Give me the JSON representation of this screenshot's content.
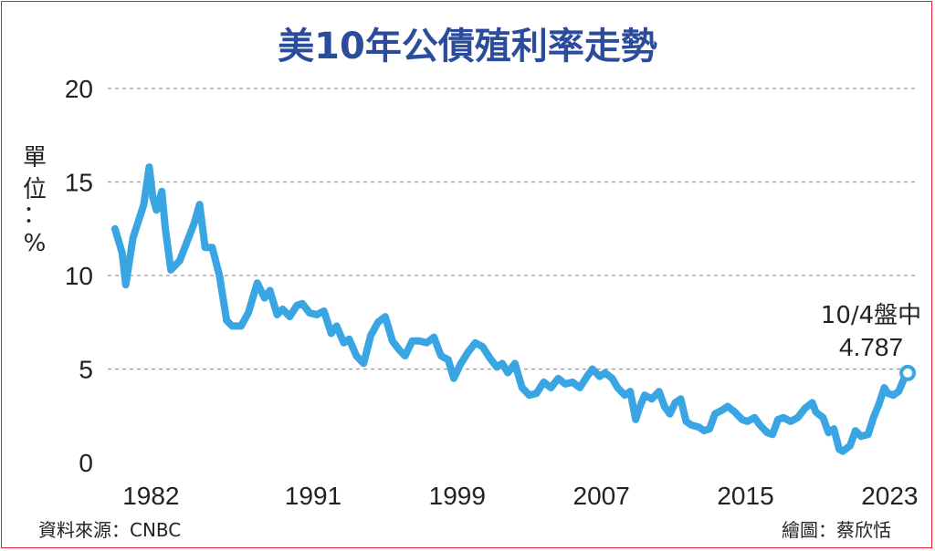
{
  "chart_data": {
    "type": "line",
    "title": "美10年公債殖利率走勢",
    "ylabel": "單位：%",
    "ylim": [
      0,
      20
    ],
    "yticks": [
      0,
      5,
      10,
      15,
      20
    ],
    "xlim": [
      1979.6,
      2024.4
    ],
    "xticks": [
      "1982",
      "1991",
      "1999",
      "2007",
      "2015",
      "2023"
    ],
    "xtick_values": [
      1982,
      1991,
      1999,
      2007,
      2015,
      2023
    ],
    "grid": "horizontal dashed",
    "line_color": "#3aa5e3",
    "series": [
      {
        "x": [
          1980.0,
          1980.4,
          1980.6,
          1981.0,
          1981.6,
          1981.9,
          1982.1,
          1982.3,
          1982.6,
          1982.8,
          1983.1,
          1983.6,
          1984.0,
          1984.4,
          1984.7,
          1985.0,
          1985.4,
          1985.8,
          1986.2,
          1986.5,
          1987.0,
          1987.4,
          1987.9,
          1988.3,
          1988.6,
          1989.0,
          1989.3,
          1989.7,
          1990.1,
          1990.4,
          1990.8,
          1991.2,
          1991.6,
          1992.0,
          1992.3,
          1992.7,
          1993.0,
          1993.4,
          1993.8,
          1994.2,
          1994.6,
          1995.0,
          1995.4,
          1995.8,
          1996.1,
          1996.5,
          1996.9,
          1997.3,
          1997.7,
          1998.1,
          1998.5,
          1998.8,
          1999.2,
          1999.6,
          2000.0,
          2000.4,
          2000.8,
          2001.2,
          2001.5,
          2001.8,
          2002.2,
          2002.6,
          2003.0,
          2003.4,
          2003.8,
          2004.2,
          2004.6,
          2005.0,
          2005.4,
          2005.8,
          2006.2,
          2006.5,
          2006.9,
          2007.2,
          2007.6,
          2007.9,
          2008.3,
          2008.6,
          2008.9,
          2009.1,
          2009.4,
          2009.8,
          2010.2,
          2010.5,
          2010.8,
          2011.1,
          2011.4,
          2011.7,
          2012.0,
          2012.4,
          2012.7,
          2013.0,
          2013.3,
          2013.7,
          2014.0,
          2014.4,
          2014.8,
          2015.1,
          2015.5,
          2015.8,
          2016.2,
          2016.5,
          2016.8,
          2017.1,
          2017.5,
          2017.9,
          2018.3,
          2018.7,
          2018.9,
          2019.3,
          2019.6,
          2019.9,
          2020.2,
          2020.4,
          2020.8,
          2021.1,
          2021.4,
          2021.8,
          2022.1,
          2022.4,
          2022.7,
          2022.9,
          2023.2,
          2023.5,
          2023.8,
          2024.0
        ],
        "y": [
          12.5,
          11.2,
          9.5,
          12.0,
          13.8,
          15.8,
          14.2,
          13.5,
          14.5,
          12.5,
          10.3,
          10.8,
          11.8,
          12.8,
          13.8,
          11.5,
          11.5,
          10.0,
          7.6,
          7.3,
          7.3,
          8.0,
          9.6,
          8.8,
          9.2,
          7.9,
          8.2,
          7.8,
          8.4,
          8.5,
          8.0,
          7.9,
          8.1,
          6.9,
          7.3,
          6.4,
          6.6,
          5.7,
          5.3,
          6.8,
          7.5,
          7.8,
          6.5,
          6.0,
          5.7,
          6.5,
          6.5,
          6.4,
          6.7,
          5.7,
          5.5,
          4.5,
          5.3,
          5.9,
          6.4,
          6.2,
          5.6,
          5.1,
          5.3,
          4.8,
          5.3,
          4.0,
          3.6,
          3.7,
          4.3,
          4.0,
          4.5,
          4.2,
          4.3,
          4.0,
          4.6,
          5.0,
          4.6,
          4.8,
          4.5,
          4.0,
          3.6,
          3.8,
          2.3,
          2.9,
          3.6,
          3.4,
          3.8,
          3.0,
          2.6,
          3.2,
          3.4,
          2.2,
          2.0,
          1.9,
          1.7,
          1.8,
          2.6,
          2.8,
          3.0,
          2.7,
          2.3,
          2.2,
          2.4,
          2.0,
          1.6,
          1.5,
          2.3,
          2.4,
          2.2,
          2.4,
          2.9,
          3.2,
          2.7,
          2.4,
          1.6,
          1.8,
          0.7,
          0.6,
          0.9,
          1.7,
          1.4,
          1.5,
          2.4,
          3.1,
          4.0,
          3.7,
          3.6,
          3.8,
          4.5,
          4.787
        ]
      }
    ],
    "annotation": {
      "label": "10/4盤中",
      "value": "4.787",
      "x": 2024.0,
      "y": 4.787
    }
  },
  "footer": {
    "source": "資料來源：CNBC",
    "credit": "繪圖：蔡欣恬"
  }
}
